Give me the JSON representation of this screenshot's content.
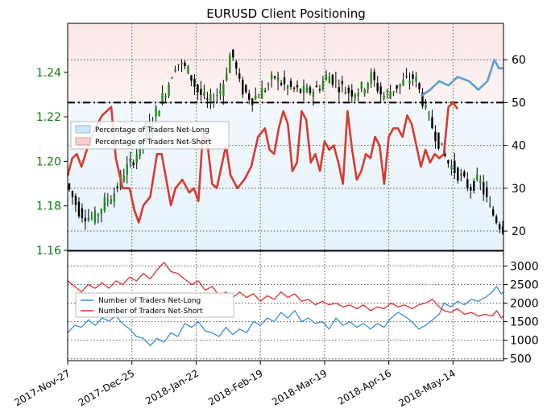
{
  "chart_data": [
    {
      "type": "line",
      "title": "EURUSD Client Positioning",
      "left_axis": {
        "label": "",
        "ylim": [
          1.16,
          1.262
        ],
        "ticks": [
          1.16,
          1.18,
          1.2,
          1.22,
          1.24
        ],
        "tick_labels": [
          "1.16",
          "1.18",
          "1.20",
          "1.22",
          "1.24"
        ],
        "color": "#0a7a0a"
      },
      "right_axis": {
        "label": "",
        "ylim": [
          15.5,
          68.5
        ],
        "ticks": [
          20,
          30,
          40,
          50,
          60
        ],
        "tick_labels": [
          "20",
          "30",
          "40",
          "50",
          "60"
        ]
      },
      "reference_line": {
        "value": 50,
        "style": "dash-dot",
        "color": "#000000"
      },
      "grid": true,
      "legend": {
        "placement": "left",
        "entries": [
          "Percentage of Traders Net-Long",
          "Percentage of Traders Net-Short"
        ]
      },
      "price_candles_description": "EURUSD daily candlesticks",
      "price_path": [
        [
          0,
          1.19
        ],
        [
          6,
          1.177
        ],
        [
          12,
          1.174
        ],
        [
          17,
          1.182
        ],
        [
          21,
          1.186
        ],
        [
          25,
          1.195
        ],
        [
          30,
          1.202
        ],
        [
          35,
          1.213
        ],
        [
          40,
          1.224
        ],
        [
          45,
          1.236
        ],
        [
          48,
          1.245
        ],
        [
          53,
          1.241
        ],
        [
          57,
          1.232
        ],
        [
          62,
          1.226
        ],
        [
          68,
          1.233
        ],
        [
          72,
          1.25
        ],
        [
          76,
          1.233
        ],
        [
          81,
          1.228
        ],
        [
          86,
          1.232
        ],
        [
          91,
          1.238
        ],
        [
          95,
          1.234
        ],
        [
          100,
          1.232
        ],
        [
          105,
          1.231
        ],
        [
          110,
          1.233
        ],
        [
          114,
          1.239
        ],
        [
          119,
          1.234
        ],
        [
          124,
          1.231
        ],
        [
          129,
          1.233
        ],
        [
          133,
          1.238
        ],
        [
          138,
          1.229
        ],
        [
          143,
          1.233
        ],
        [
          148,
          1.236
        ],
        [
          152,
          1.238
        ],
        [
          157,
          1.222
        ],
        [
          161,
          1.212
        ],
        [
          166,
          1.2
        ],
        [
          171,
          1.194
        ],
        [
          176,
          1.188
        ],
        [
          180,
          1.192
        ],
        [
          185,
          1.178
        ],
        [
          190,
          1.17
        ]
      ],
      "series": [
        {
          "name": "Percentage of Traders Net-Long",
          "color": "#5ba0d0",
          "points": [
            [
              154,
              51.5
            ],
            [
              158,
              53
            ],
            [
              162,
              55
            ],
            [
              166,
              54
            ],
            [
              170,
              56
            ],
            [
              175,
              55
            ],
            [
              179,
              53
            ],
            [
              183,
              55
            ],
            [
              186,
              60
            ],
            [
              188,
              58
            ],
            [
              190,
              58
            ]
          ]
        },
        {
          "name": "Percentage of Traders Net-Short",
          "color": "#d93a2e",
          "points": [
            [
              0,
              33
            ],
            [
              2,
              37
            ],
            [
              4,
              38
            ],
            [
              6,
              35
            ],
            [
              9,
              40
            ],
            [
              12,
              44
            ],
            [
              15,
              47
            ],
            [
              19,
              49
            ],
            [
              21,
              37
            ],
            [
              24,
              30
            ],
            [
              27,
              30
            ],
            [
              29,
              25
            ],
            [
              31,
              22
            ],
            [
              33,
              26
            ],
            [
              36,
              28
            ],
            [
              39,
              38
            ],
            [
              41,
              38
            ],
            [
              43,
              32
            ],
            [
              45,
              26
            ],
            [
              47,
              30
            ],
            [
              50,
              32
            ],
            [
              53,
              29
            ],
            [
              55,
              30
            ],
            [
              57,
              27
            ],
            [
              59,
              43
            ],
            [
              61,
              40
            ],
            [
              63,
              31
            ],
            [
              65,
              30
            ],
            [
              67,
              35
            ],
            [
              69,
              40
            ],
            [
              71,
              33
            ],
            [
              74,
              30
            ],
            [
              77,
              32
            ],
            [
              80,
              35
            ],
            [
              83,
              42
            ],
            [
              86,
              44
            ],
            [
              88,
              39
            ],
            [
              90,
              38
            ],
            [
              92,
              44
            ],
            [
              94,
              48
            ],
            [
              96,
              45
            ],
            [
              98,
              34
            ],
            [
              100,
              36
            ],
            [
              102,
              48
            ],
            [
              104,
              46
            ],
            [
              106,
              36
            ],
            [
              108,
              38
            ],
            [
              110,
              34
            ],
            [
              112,
              41
            ],
            [
              114,
              39
            ],
            [
              116,
              40
            ],
            [
              118,
              36
            ],
            [
              120,
              31
            ],
            [
              122,
              48
            ],
            [
              124,
              39
            ],
            [
              126,
              32
            ],
            [
              128,
              34
            ],
            [
              130,
              38
            ],
            [
              132,
              37
            ],
            [
              134,
              42
            ],
            [
              136,
              40
            ],
            [
              138,
              31
            ],
            [
              140,
              42
            ],
            [
              142,
              44
            ],
            [
              144,
              44
            ],
            [
              146,
              42
            ],
            [
              148,
              47
            ],
            [
              150,
              45
            ],
            [
              152,
              40
            ],
            [
              154,
              35
            ],
            [
              156,
              39
            ],
            [
              158,
              36
            ],
            [
              160,
              38
            ],
            [
              162,
              37
            ],
            [
              164,
              38
            ],
            [
              166,
              49
            ],
            [
              168,
              50
            ],
            [
              170,
              48.5
            ]
          ]
        }
      ]
    },
    {
      "type": "line",
      "ylim": [
        450,
        3400
      ],
      "y_ticks": [
        500,
        1000,
        1500,
        2000,
        2500,
        3000
      ],
      "y_tick_labels": [
        "500",
        "1000",
        "1500",
        "2000",
        "2500",
        "3000"
      ],
      "grid": true,
      "legend": {
        "placement": "left",
        "entries": [
          "Number of Traders Net-Long",
          "Number of Traders Net-Short"
        ]
      },
      "x_ticks": [
        0,
        28,
        56,
        84,
        112,
        140,
        168
      ],
      "x_tick_labels": [
        "2017-Nov-27",
        "2017-Dec-25",
        "2018-Jan-22",
        "2018-Feb-19",
        "2018-Mar-19",
        "2018-Apr-16",
        "2018-May-14"
      ],
      "xlim": [
        0,
        190
      ],
      "series": [
        {
          "name": "Number of Traders Net-Long",
          "color": "#3b8fd8",
          "points": [
            [
              0,
              1200
            ],
            [
              3,
              1400
            ],
            [
              6,
              1350
            ],
            [
              9,
              1550
            ],
            [
              12,
              1400
            ],
            [
              15,
              1600
            ],
            [
              18,
              1520
            ],
            [
              21,
              1650
            ],
            [
              24,
              1450
            ],
            [
              27,
              1300
            ],
            [
              30,
              1100
            ],
            [
              33,
              1050
            ],
            [
              36,
              850
            ],
            [
              39,
              1050
            ],
            [
              42,
              950
            ],
            [
              45,
              1200
            ],
            [
              48,
              1100
            ],
            [
              51,
              1450
            ],
            [
              54,
              1350
            ],
            [
              57,
              1500
            ],
            [
              60,
              1250
            ],
            [
              63,
              1200
            ],
            [
              66,
              1100
            ],
            [
              69,
              1350
            ],
            [
              72,
              1150
            ],
            [
              75,
              1300
            ],
            [
              78,
              1200
            ],
            [
              81,
              1500
            ],
            [
              84,
              1400
            ],
            [
              87,
              1600
            ],
            [
              90,
              1500
            ],
            [
              93,
              1750
            ],
            [
              96,
              1600
            ],
            [
              99,
              1800
            ],
            [
              102,
              1500
            ],
            [
              105,
              1600
            ],
            [
              108,
              1450
            ],
            [
              111,
              1500
            ],
            [
              114,
              1300
            ],
            [
              117,
              1600
            ],
            [
              120,
              1400
            ],
            [
              123,
              1500
            ],
            [
              126,
              1350
            ],
            [
              129,
              1450
            ],
            [
              132,
              1300
            ],
            [
              135,
              1450
            ],
            [
              138,
              1350
            ],
            [
              141,
              1600
            ],
            [
              144,
              1750
            ],
            [
              147,
              1650
            ],
            [
              150,
              1500
            ],
            [
              153,
              1300
            ],
            [
              156,
              1400
            ],
            [
              159,
              1550
            ],
            [
              162,
              1700
            ],
            [
              164,
              2000
            ],
            [
              167,
              1900
            ],
            [
              170,
              2050
            ],
            [
              173,
              1950
            ],
            [
              176,
              2100
            ],
            [
              179,
              2050
            ],
            [
              182,
              2150
            ],
            [
              185,
              2300
            ],
            [
              187,
              2450
            ],
            [
              189,
              2250
            ],
            [
              190,
              2300
            ]
          ]
        },
        {
          "name": "Number of Traders Net-Short",
          "color": "#e03030",
          "points": [
            [
              0,
              2600
            ],
            [
              3,
              2450
            ],
            [
              6,
              2300
            ],
            [
              9,
              2500
            ],
            [
              12,
              2400
            ],
            [
              15,
              2550
            ],
            [
              18,
              2400
            ],
            [
              21,
              2600
            ],
            [
              24,
              2500
            ],
            [
              27,
              2700
            ],
            [
              30,
              2600
            ],
            [
              33,
              2800
            ],
            [
              36,
              2650
            ],
            [
              39,
              2900
            ],
            [
              42,
              3100
            ],
            [
              45,
              2850
            ],
            [
              48,
              2800
            ],
            [
              51,
              2650
            ],
            [
              54,
              2500
            ],
            [
              57,
              2600
            ],
            [
              60,
              2350
            ],
            [
              63,
              2450
            ],
            [
              66,
              2200
            ],
            [
              69,
              2300
            ],
            [
              72,
              2150
            ],
            [
              75,
              2300
            ],
            [
              78,
              2150
            ],
            [
              81,
              2250
            ],
            [
              84,
              2050
            ],
            [
              87,
              2200
            ],
            [
              90,
              2100
            ],
            [
              93,
              2300
            ],
            [
              96,
              2150
            ],
            [
              99,
              2250
            ],
            [
              102,
              2050
            ],
            [
              105,
              2100
            ],
            [
              108,
              1950
            ],
            [
              111,
              2050
            ],
            [
              114,
              1950
            ],
            [
              117,
              2000
            ],
            [
              120,
              1900
            ],
            [
              123,
              1950
            ],
            [
              126,
              1850
            ],
            [
              129,
              1950
            ],
            [
              132,
              1800
            ],
            [
              135,
              1900
            ],
            [
              138,
              1850
            ],
            [
              141,
              2000
            ],
            [
              144,
              1900
            ],
            [
              147,
              1950
            ],
            [
              150,
              1850
            ],
            [
              153,
              1950
            ],
            [
              156,
              2000
            ],
            [
              159,
              2100
            ],
            [
              162,
              1900
            ],
            [
              164,
              1800
            ],
            [
              167,
              1750
            ],
            [
              170,
              1850
            ],
            [
              173,
              1700
            ],
            [
              176,
              1750
            ],
            [
              179,
              1650
            ],
            [
              182,
              1700
            ],
            [
              185,
              1650
            ],
            [
              187,
              1800
            ],
            [
              189,
              1600
            ],
            [
              190,
              1650
            ]
          ]
        }
      ]
    }
  ],
  "colors": {
    "net_long_fill": "#cfe6f7",
    "net_short_fill": "#f8cfcf",
    "grid_vertical": "#2c8a2c",
    "grid_horizontal": "#555555"
  }
}
